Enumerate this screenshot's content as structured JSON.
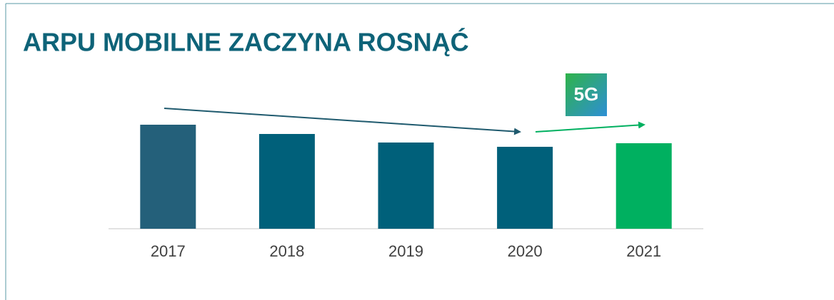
{
  "chart_data": {
    "type": "bar",
    "title": "ARPU MOBILNE ZACZYNA ROSNĄĆ",
    "categories": [
      "2017",
      "2018",
      "2019",
      "2020",
      "2021"
    ],
    "values": [
      146,
      133,
      121,
      115,
      120
    ],
    "colors": [
      "#24607a",
      "#00607a",
      "#00607a",
      "#00607a",
      "#00b060"
    ],
    "ylim": [
      0,
      160
    ],
    "annotations": [
      "5G"
    ]
  }
}
